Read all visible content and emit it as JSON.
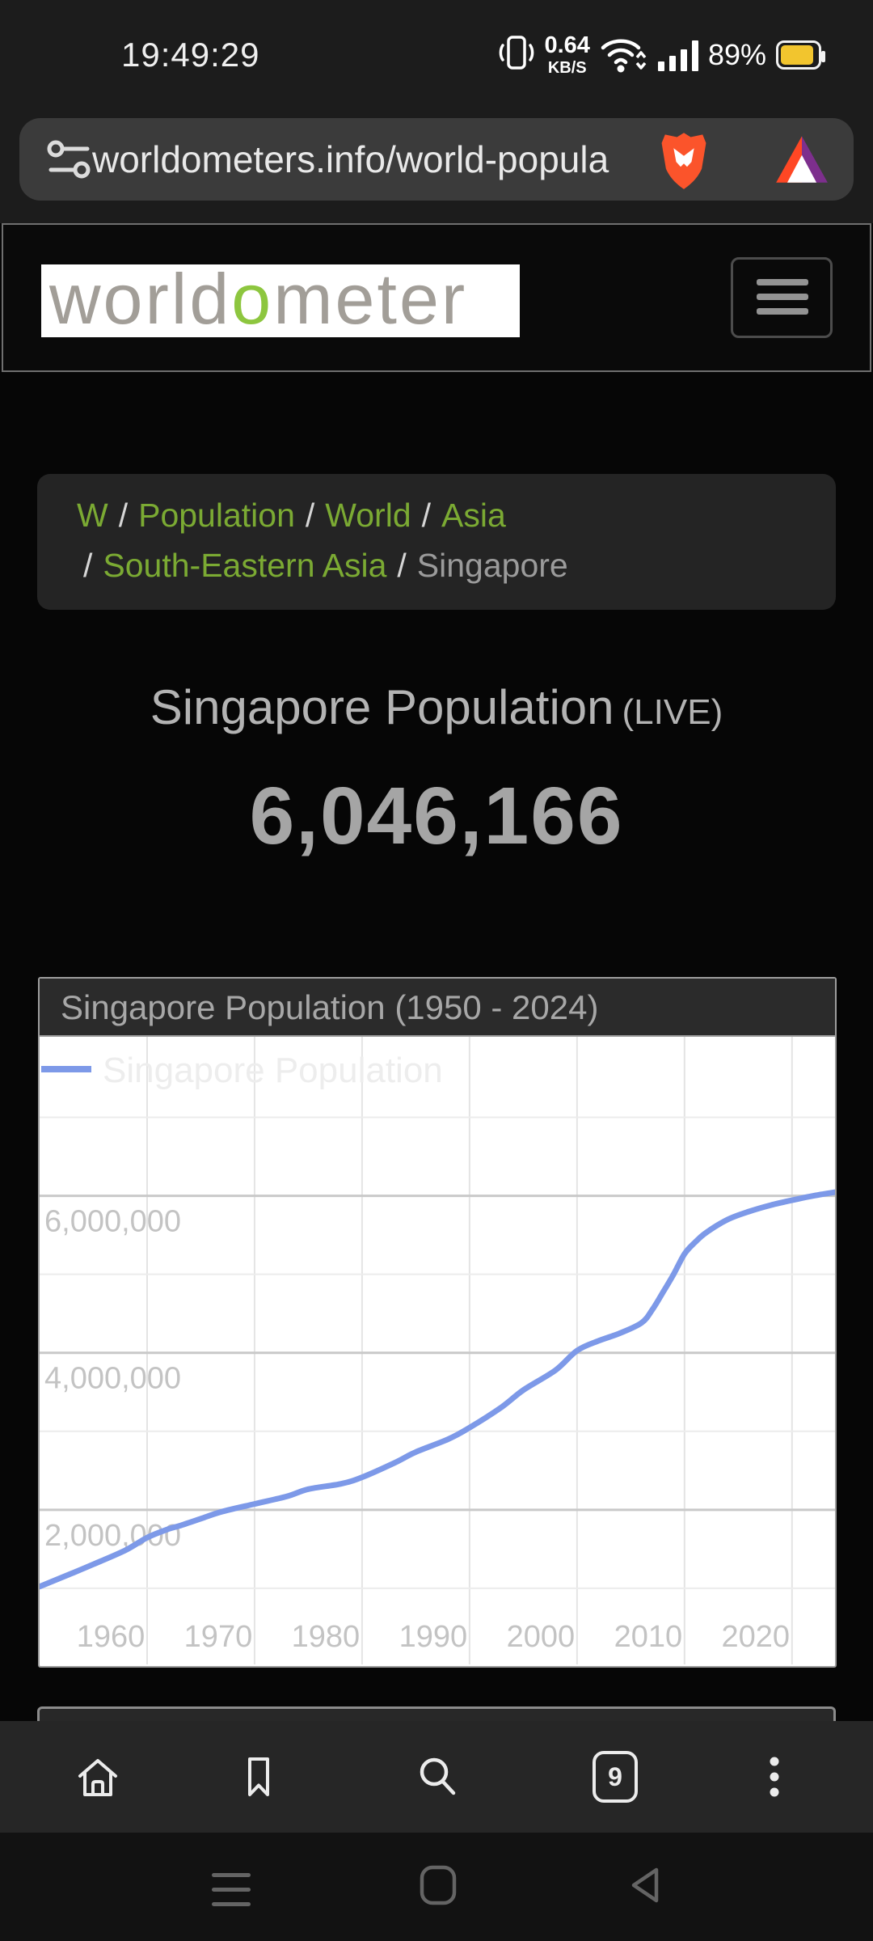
{
  "status_bar": {
    "time": "19:49:29",
    "network_speed": "0.64",
    "network_speed_unit": "KB/S",
    "battery": "89%"
  },
  "browser": {
    "url": "worldometers.info/world-popula",
    "tab_count": "9"
  },
  "site": {
    "logo_world": "world",
    "logo_o": "o",
    "logo_meter": "meter"
  },
  "breadcrumb": {
    "sep": "/",
    "items": [
      "W",
      "Population",
      "World",
      "Asia",
      "South-Eastern Asia",
      "Singapore"
    ]
  },
  "page": {
    "title": "Singapore Population",
    "live_label": "(LIVE)",
    "live_count": "6,046,166"
  },
  "chart_data": {
    "type": "line",
    "title": "Singapore Population (1950 - 2024)",
    "legend": "Singapore Population",
    "line_color": "#7d99e8",
    "grid": true,
    "legend_position": "top-left",
    "x_range": [
      1950,
      2024
    ],
    "y_range": [
      10000,
      8025000
    ],
    "x_ticks": [
      1960,
      1970,
      1980,
      1990,
      2000,
      2010,
      2020
    ],
    "y_ticks_major": [
      2000000,
      4000000,
      6000000
    ],
    "y_gridlines_minor": [
      1000000,
      3000000,
      5000000,
      7000000
    ],
    "series": [
      {
        "name": "Singapore Population",
        "color": "#7d99e8",
        "points": [
          [
            1950,
            1022000
          ],
          [
            1953,
            1191000
          ],
          [
            1955,
            1306000
          ],
          [
            1958,
            1486000
          ],
          [
            1960,
            1646000
          ],
          [
            1962,
            1756000
          ],
          [
            1963,
            1795000
          ],
          [
            1965,
            1887000
          ],
          [
            1967,
            1978000
          ],
          [
            1970,
            2075000
          ],
          [
            1973,
            2170000
          ],
          [
            1975,
            2263000
          ],
          [
            1978,
            2330000
          ],
          [
            1980,
            2414000
          ],
          [
            1983,
            2597000
          ],
          [
            1985,
            2736000
          ],
          [
            1988,
            2899000
          ],
          [
            1990,
            3047000
          ],
          [
            1993,
            3310000
          ],
          [
            1995,
            3525000
          ],
          [
            1998,
            3779000
          ],
          [
            2000,
            4028000
          ],
          [
            2002,
            4152000
          ],
          [
            2004,
            4250000
          ],
          [
            2006,
            4381000
          ],
          [
            2007,
            4548000
          ],
          [
            2008,
            4772000
          ],
          [
            2009,
            5003000
          ],
          [
            2010,
            5260000
          ],
          [
            2011,
            5410000
          ],
          [
            2012,
            5530000
          ],
          [
            2014,
            5697000
          ],
          [
            2016,
            5800000
          ],
          [
            2018,
            5880000
          ],
          [
            2020,
            5943000
          ],
          [
            2022,
            6000000
          ],
          [
            2024,
            6046000
          ]
        ]
      }
    ]
  },
  "icons": {
    "status": [
      "vibrate-icon",
      "wifi-icon",
      "signal-bars-icon",
      "battery-icon"
    ],
    "url_bar": [
      "tune-icon",
      "brave-shield-icon",
      "bat-token-icon"
    ],
    "bottom_nav": [
      "home-icon",
      "bookmark-icon",
      "search-icon",
      "tab-counter",
      "overflow-menu-icon"
    ],
    "android_nav": [
      "menu-lines-icon",
      "home-square-icon",
      "back-triangle-icon"
    ]
  }
}
